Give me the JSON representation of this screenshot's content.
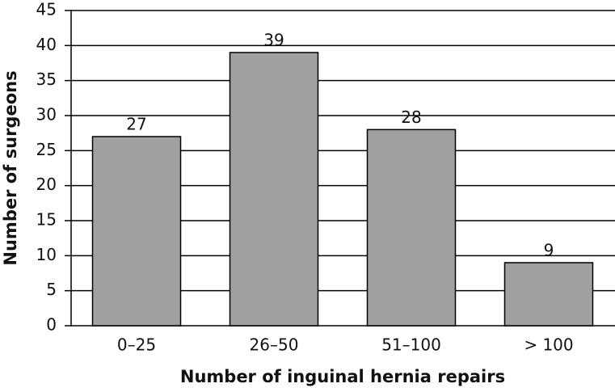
{
  "chart_data": {
    "type": "bar",
    "categories": [
      "0–25",
      "26–50",
      "51–100",
      "> 100"
    ],
    "values": [
      27,
      39,
      28,
      9
    ],
    "color": "#a0a0a0",
    "xlabel": "Number of inguinal hernia repairs",
    "ylabel": "Number of surgeons",
    "ylim": [
      0,
      45
    ],
    "yticks": [
      0,
      5,
      10,
      15,
      20,
      25,
      30,
      35,
      40,
      45
    ],
    "grid": true
  }
}
